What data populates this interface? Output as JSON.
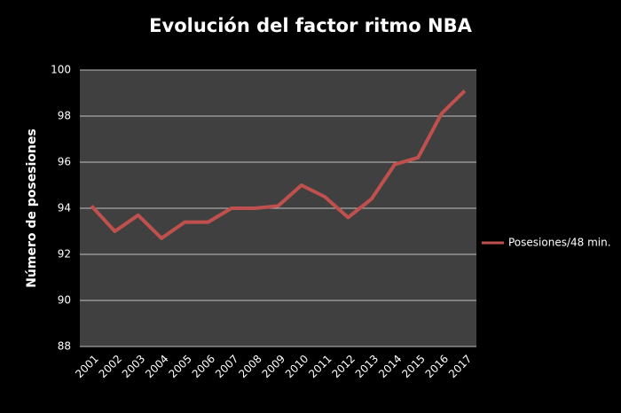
{
  "chart_data": {
    "type": "line",
    "title": "Evolución del factor ritmo NBA",
    "y_label": "Número de posesiones",
    "categories": [
      "2001",
      "2002",
      "2003",
      "2004",
      "2005",
      "2006",
      "2007",
      "2008",
      "2009",
      "2010",
      "2011",
      "2012",
      "2013",
      "2014",
      "2015",
      "2016",
      "2017"
    ],
    "series": [
      {
        "name": "Posesiones/48 min.",
        "color": "#c0504d",
        "values": [
          94.1,
          93.0,
          93.7,
          92.7,
          93.4,
          93.4,
          94.0,
          94.0,
          94.1,
          95.0,
          94.5,
          93.6,
          94.4,
          95.9,
          96.2,
          98.1,
          99.1
        ]
      }
    ],
    "ylim": [
      88,
      100
    ],
    "yticks": [
      88,
      90,
      92,
      94,
      96,
      98,
      100
    ],
    "grid": true,
    "legend": "right"
  }
}
